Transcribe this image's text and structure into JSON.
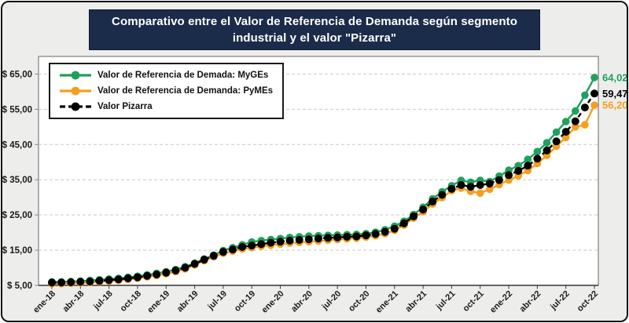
{
  "title": {
    "text": "Comparativo entre el Valor de Referencia de Demanda según segmento industrial y el valor \"Pizarra\""
  },
  "chart_data": {
    "type": "line",
    "x_label_every_n_points": 3,
    "x_tick_labels": [
      "ene-18",
      "abr-18",
      "jul-18",
      "oct-18",
      "ene-19",
      "abr-19",
      "jul-19",
      "oct-19",
      "ene-20",
      "abr-20",
      "jul-20",
      "oct-20",
      "ene-21",
      "abr-21",
      "jul-21",
      "oct-21",
      "ene-22",
      "abr-22",
      "jul-22",
      "oct-22"
    ],
    "y_ticks": [
      5,
      15,
      25,
      35,
      45,
      55,
      65
    ],
    "y_tick_labels": [
      "$ 5,00",
      "$ 15,00",
      "$ 25,00",
      "$ 35,00",
      "$ 45,00",
      "$ 55,00",
      "$ 65,00"
    ],
    "ylim": [
      5,
      70
    ],
    "grid": "horizontal-dashed",
    "legend_position": "top-left",
    "currency": "$",
    "series": [
      {
        "name": "Valor de Referencia de Demada: MyGEs",
        "color": "#1fa05c",
        "dash": false,
        "end_label": "64,02",
        "values": [
          6.0,
          6.0,
          6.1,
          6.2,
          6.4,
          6.6,
          6.8,
          7.0,
          7.3,
          7.6,
          8.0,
          8.4,
          8.9,
          9.5,
          10.3,
          11.3,
          12.5,
          13.6,
          14.9,
          15.7,
          16.5,
          17.3,
          17.7,
          18.0,
          18.3,
          18.6,
          18.8,
          19.0,
          19.1,
          19.2,
          19.3,
          19.4,
          19.5,
          19.7,
          20.1,
          20.8,
          21.8,
          23.2,
          25.1,
          27.2,
          29.6,
          31.6,
          33.3,
          34.8,
          34.3,
          34.8,
          34.5,
          36.0,
          37.7,
          39.0,
          40.8,
          43.0,
          45.5,
          48.5,
          51.5,
          54.5,
          59.0,
          64.02
        ]
      },
      {
        "name": "Valor de Referencia de Demanda: PyMEs",
        "color": "#f59e1f",
        "dash": false,
        "end_label": "56,20",
        "values": [
          5.5,
          5.5,
          5.6,
          5.7,
          5.8,
          6.0,
          6.2,
          6.4,
          6.7,
          7.0,
          7.4,
          7.8,
          8.3,
          8.9,
          9.7,
          10.8,
          12.0,
          13.1,
          14.1,
          14.7,
          15.3,
          15.7,
          16.1,
          16.4,
          16.7,
          17.0,
          17.2,
          17.4,
          17.6,
          17.8,
          18.0,
          18.2,
          18.4,
          18.7,
          19.1,
          19.7,
          20.6,
          22.1,
          24.1,
          25.9,
          28.1,
          29.9,
          31.9,
          32.6,
          31.7,
          31.2,
          32.3,
          33.6,
          34.9,
          36.1,
          37.6,
          39.6,
          41.9,
          44.5,
          47.0,
          50.0,
          50.6,
          56.2
        ]
      },
      {
        "name": "Valor Pizarra",
        "color": "#000000",
        "dash": true,
        "end_label": "59,47",
        "values": [
          5.8,
          5.8,
          5.9,
          6.0,
          6.1,
          6.3,
          6.5,
          6.7,
          7.0,
          7.3,
          7.7,
          8.1,
          8.6,
          9.2,
          10.0,
          11.1,
          12.3,
          13.4,
          14.5,
          15.2,
          15.9,
          16.3,
          16.7,
          17.1,
          17.4,
          17.7,
          17.9,
          18.1,
          18.3,
          18.5,
          18.6,
          18.8,
          18.9,
          19.2,
          19.6,
          20.2,
          21.1,
          22.6,
          24.6,
          26.5,
          28.8,
          30.7,
          32.4,
          33.5,
          33.0,
          33.5,
          33.9,
          34.9,
          36.3,
          37.5,
          39.0,
          41.0,
          43.3,
          45.9,
          48.6,
          51.6,
          55.5,
          59.47
        ]
      }
    ]
  }
}
